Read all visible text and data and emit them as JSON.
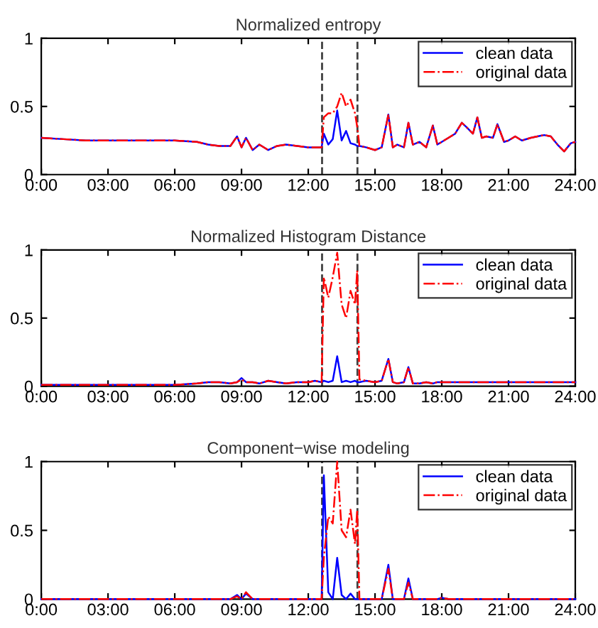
{
  "chart_data": [
    {
      "type": "line",
      "title": "Normalized entropy",
      "x": [
        0,
        1,
        2,
        3,
        4,
        5,
        6,
        7,
        7.5,
        8,
        8.5,
        8.8,
        9,
        9.2,
        9.5,
        9.8,
        10.2,
        10.6,
        11,
        11.5,
        12,
        12.3,
        12.6,
        12.7,
        12.9,
        13.1,
        13.3,
        13.5,
        13.7,
        13.9,
        14.1,
        14.2,
        14.3,
        14.6,
        15,
        15.3,
        15.6,
        15.8,
        16,
        16.3,
        16.5,
        16.7,
        17,
        17.3,
        17.6,
        17.8,
        18,
        18.3,
        18.6,
        18.9,
        19.1,
        19.4,
        19.6,
        19.8,
        20,
        20.3,
        20.5,
        20.8,
        21,
        21.3,
        21.6,
        22,
        22.3,
        22.6,
        22.9,
        23.2,
        23.5,
        23.8,
        24
      ],
      "series": [
        {
          "name": "clean data",
          "color": "#0000ff",
          "line_style": "solid",
          "values": [
            0.27,
            0.26,
            0.25,
            0.25,
            0.25,
            0.25,
            0.25,
            0.24,
            0.22,
            0.21,
            0.21,
            0.28,
            0.2,
            0.27,
            0.18,
            0.22,
            0.18,
            0.21,
            0.22,
            0.21,
            0.2,
            0.2,
            0.2,
            0.3,
            0.22,
            0.26,
            0.47,
            0.25,
            0.32,
            0.23,
            0.22,
            0.21,
            0.21,
            0.2,
            0.18,
            0.2,
            0.44,
            0.2,
            0.22,
            0.2,
            0.38,
            0.22,
            0.24,
            0.2,
            0.36,
            0.22,
            0.24,
            0.27,
            0.3,
            0.38,
            0.35,
            0.3,
            0.42,
            0.27,
            0.28,
            0.27,
            0.37,
            0.24,
            0.25,
            0.28,
            0.25,
            0.27,
            0.28,
            0.29,
            0.28,
            0.22,
            0.17,
            0.23,
            0.24
          ]
        },
        {
          "name": "original data",
          "color": "#ff0000",
          "line_style": "dashed",
          "values": [
            0.27,
            0.26,
            0.25,
            0.25,
            0.25,
            0.25,
            0.25,
            0.24,
            0.22,
            0.21,
            0.21,
            0.28,
            0.2,
            0.27,
            0.18,
            0.22,
            0.18,
            0.21,
            0.22,
            0.21,
            0.2,
            0.2,
            0.2,
            0.42,
            0.45,
            0.45,
            0.5,
            0.6,
            0.5,
            0.55,
            0.45,
            0.35,
            0.21,
            0.2,
            0.18,
            0.2,
            0.44,
            0.2,
            0.22,
            0.2,
            0.38,
            0.22,
            0.24,
            0.2,
            0.36,
            0.22,
            0.24,
            0.27,
            0.3,
            0.38,
            0.35,
            0.3,
            0.42,
            0.27,
            0.28,
            0.27,
            0.37,
            0.24,
            0.25,
            0.28,
            0.25,
            0.27,
            0.28,
            0.29,
            0.28,
            0.22,
            0.17,
            0.23,
            0.24
          ]
        }
      ],
      "xlim": [
        0,
        24
      ],
      "ylim": [
        0,
        1
      ],
      "xticks": [
        {
          "value": 0,
          "label": "0:00"
        },
        {
          "value": 3,
          "label": "03:00"
        },
        {
          "value": 6,
          "label": "06:00"
        },
        {
          "value": 9,
          "label": "09:00"
        },
        {
          "value": 12,
          "label": "12:00"
        },
        {
          "value": 15,
          "label": "15:00"
        },
        {
          "value": 18,
          "label": "18:00"
        },
        {
          "value": 21,
          "label": "21:00"
        },
        {
          "value": 24,
          "label": "24:00"
        }
      ],
      "yticks": [
        0,
        0.5,
        1
      ],
      "ref_lines": [
        {
          "axis": "x",
          "value": 12.62,
          "color": "#404040",
          "line_style": "dashed"
        },
        {
          "axis": "x",
          "value": 14.21,
          "color": "#404040",
          "line_style": "dashed"
        }
      ],
      "legend": "top right",
      "grid": false
    },
    {
      "type": "line",
      "title": "Normalized Histogram Distance",
      "x": [
        0,
        1,
        2,
        3,
        4,
        5,
        6,
        7,
        7.5,
        8,
        8.5,
        8.8,
        9,
        9.2,
        9.5,
        9.8,
        10.2,
        10.6,
        11,
        11.5,
        12,
        12.3,
        12.6,
        12.7,
        12.9,
        13.1,
        13.3,
        13.5,
        13.7,
        13.9,
        14.1,
        14.2,
        14.3,
        14.6,
        15,
        15.3,
        15.6,
        15.8,
        16,
        16.3,
        16.5,
        16.7,
        17,
        17.3,
        17.6,
        17.8,
        18,
        18.3,
        18.6,
        18.9,
        19.1,
        19.4,
        19.6,
        19.8,
        20,
        20.3,
        20.5,
        20.8,
        21,
        21.3,
        21.6,
        22,
        22.3,
        22.6,
        22.9,
        23.2,
        23.5,
        23.8,
        24
      ],
      "series": [
        {
          "name": "clean data",
          "color": "#0000ff",
          "line_style": "solid",
          "values": [
            0.01,
            0.01,
            0.01,
            0.01,
            0.01,
            0.01,
            0.01,
            0.02,
            0.03,
            0.03,
            0.02,
            0.03,
            0.06,
            0.03,
            0.03,
            0.02,
            0.04,
            0.03,
            0.02,
            0.03,
            0.03,
            0.04,
            0.03,
            0.04,
            0.03,
            0.04,
            0.22,
            0.03,
            0.04,
            0.03,
            0.04,
            0.03,
            0.03,
            0.04,
            0.03,
            0.04,
            0.2,
            0.03,
            0.02,
            0.03,
            0.14,
            0.02,
            0.02,
            0.03,
            0.02,
            0.03,
            0.03,
            0.03,
            0.03,
            0.03,
            0.03,
            0.03,
            0.03,
            0.03,
            0.03,
            0.03,
            0.03,
            0.03,
            0.03,
            0.03,
            0.03,
            0.03,
            0.03,
            0.03,
            0.03,
            0.03,
            0.03,
            0.03,
            0.03
          ]
        },
        {
          "name": "original data",
          "color": "#ff0000",
          "line_style": "dashed",
          "values": [
            0.01,
            0.01,
            0.01,
            0.01,
            0.01,
            0.01,
            0.01,
            0.02,
            0.03,
            0.03,
            0.02,
            0.03,
            0.05,
            0.03,
            0.03,
            0.02,
            0.04,
            0.03,
            0.02,
            0.03,
            0.03,
            0.04,
            0.03,
            0.8,
            0.65,
            0.8,
            0.98,
            0.6,
            0.5,
            0.7,
            0.6,
            0.85,
            0.05,
            0.04,
            0.03,
            0.04,
            0.2,
            0.03,
            0.02,
            0.03,
            0.14,
            0.02,
            0.02,
            0.03,
            0.02,
            0.03,
            0.03,
            0.03,
            0.03,
            0.03,
            0.03,
            0.03,
            0.03,
            0.03,
            0.03,
            0.03,
            0.03,
            0.03,
            0.03,
            0.03,
            0.03,
            0.03,
            0.03,
            0.03,
            0.03,
            0.03,
            0.03,
            0.03,
            0.03
          ]
        }
      ],
      "xlim": [
        0,
        24
      ],
      "ylim": [
        0,
        1
      ],
      "xticks": [
        {
          "value": 0,
          "label": "0:00"
        },
        {
          "value": 3,
          "label": "03:00"
        },
        {
          "value": 6,
          "label": "06:00"
        },
        {
          "value": 9,
          "label": "09:00"
        },
        {
          "value": 12,
          "label": "12:00"
        },
        {
          "value": 15,
          "label": "15:00"
        },
        {
          "value": 18,
          "label": "18:00"
        },
        {
          "value": 21,
          "label": "21:00"
        },
        {
          "value": 24,
          "label": "24:00"
        }
      ],
      "yticks": [
        0,
        0.5,
        1
      ],
      "ref_lines": [
        {
          "axis": "x",
          "value": 12.62,
          "color": "#404040",
          "line_style": "dashed"
        },
        {
          "axis": "x",
          "value": 14.21,
          "color": "#404040",
          "line_style": "dashed"
        }
      ],
      "legend": "top right",
      "grid": false
    },
    {
      "type": "line",
      "title": "Component−wise modeling",
      "x": [
        0,
        1,
        2,
        3,
        4,
        5,
        6,
        7,
        7.5,
        8,
        8.5,
        8.8,
        9,
        9.2,
        9.5,
        9.8,
        10.2,
        10.6,
        11,
        11.5,
        12,
        12.3,
        12.6,
        12.7,
        12.9,
        13.1,
        13.3,
        13.5,
        13.7,
        13.9,
        14.1,
        14.2,
        14.3,
        14.6,
        15,
        15.3,
        15.6,
        15.8,
        16,
        16.3,
        16.5,
        16.7,
        17,
        17.3,
        17.6,
        17.8,
        18,
        18.3,
        18.6,
        18.9,
        19.1,
        19.4,
        19.6,
        19.8,
        20,
        20.3,
        20.5,
        20.8,
        21,
        21.3,
        21.6,
        22,
        22.3,
        22.6,
        22.9,
        23.2,
        23.5,
        23.8,
        24
      ],
      "series": [
        {
          "name": "clean data",
          "color": "#0000ff",
          "line_style": "solid",
          "values": [
            0,
            0,
            0,
            0,
            0,
            0,
            0,
            0,
            0,
            0,
            0,
            0.03,
            0,
            0.04,
            0,
            0,
            0,
            0,
            0,
            0,
            0,
            0,
            0,
            0.9,
            0.05,
            0,
            0.3,
            0.03,
            0,
            0.04,
            0,
            0,
            0,
            0,
            0,
            0,
            0.25,
            0,
            0,
            0,
            0.15,
            0,
            0,
            0,
            0,
            0,
            0.01,
            0,
            0,
            0,
            0,
            0,
            0,
            0,
            0,
            0,
            0,
            0,
            0,
            0,
            0,
            0,
            0,
            0,
            0,
            0,
            0,
            0,
            0
          ]
        },
        {
          "name": "original data",
          "color": "#ff0000",
          "line_style": "dashed",
          "values": [
            0,
            0,
            0,
            0,
            0,
            0,
            0,
            0,
            0,
            0,
            0,
            0.02,
            0,
            0.05,
            0,
            0,
            0,
            0,
            0,
            0,
            0,
            0,
            0,
            0.3,
            0.6,
            0.55,
            1.0,
            0.5,
            0.45,
            0.65,
            0.4,
            0.65,
            0,
            0,
            0,
            0,
            0.22,
            0,
            0,
            0,
            0.12,
            0,
            0,
            0,
            0,
            0,
            0.01,
            0,
            0,
            0,
            0,
            0,
            0,
            0,
            0,
            0,
            0,
            0,
            0,
            0,
            0,
            0,
            0,
            0,
            0,
            0,
            0,
            0,
            0
          ]
        }
      ],
      "xlim": [
        0,
        24
      ],
      "ylim": [
        0,
        1
      ],
      "xticks": [
        {
          "value": 0,
          "label": "0:00"
        },
        {
          "value": 3,
          "label": "03:00"
        },
        {
          "value": 6,
          "label": "06:00"
        },
        {
          "value": 9,
          "label": "09:00"
        },
        {
          "value": 12,
          "label": "12:00"
        },
        {
          "value": 15,
          "label": "15:00"
        },
        {
          "value": 18,
          "label": "18:00"
        },
        {
          "value": 21,
          "label": "21:00"
        },
        {
          "value": 24,
          "label": "24:00"
        }
      ],
      "yticks": [
        0,
        0.5,
        1
      ],
      "ref_lines": [
        {
          "axis": "x",
          "value": 12.62,
          "color": "#404040",
          "line_style": "dashed"
        },
        {
          "axis": "x",
          "value": 14.21,
          "color": "#404040",
          "line_style": "dashed"
        }
      ],
      "legend": "top right",
      "grid": false
    }
  ]
}
